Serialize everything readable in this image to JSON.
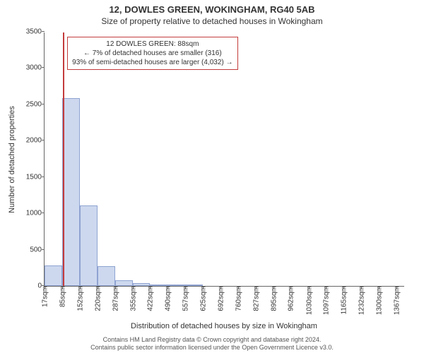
{
  "title": "12, DOWLES GREEN, WOKINGHAM, RG40 5AB",
  "subtitle": "Size of property relative to detached houses in Wokingham",
  "ylabel": "Number of detached properties",
  "xlabel": "Distribution of detached houses by size in Wokingham",
  "footer_line1": "Contains HM Land Registry data © Crown copyright and database right 2024.",
  "footer_line2": "Contains public sector information licensed under the Open Government Licence v3.0.",
  "chart": {
    "type": "histogram",
    "background_color": "#ffffff",
    "bar_fill": "#cdd8ef",
    "bar_border": "#8fa3d1",
    "axis_color": "#666666",
    "marker_color": "#c43b3b",
    "ylim": [
      0,
      3500
    ],
    "ytick_step": 500,
    "yticks": [
      0,
      500,
      1000,
      1500,
      2000,
      2500,
      3000,
      3500
    ],
    "xtick_label_fontsize": 10,
    "ytick_label_fontsize": 10,
    "title_fontsize": 13,
    "subtitle_fontsize": 12,
    "label_fontsize": 11,
    "x_min": 17,
    "x_max": 1400,
    "xticks": [
      17,
      85,
      152,
      220,
      287,
      355,
      422,
      490,
      557,
      625,
      692,
      760,
      827,
      895,
      962,
      1030,
      1097,
      1165,
      1232,
      1300,
      1367
    ],
    "xunits": "sqm",
    "bars": [
      {
        "x0": 17,
        "x1": 85,
        "count": 280
      },
      {
        "x0": 85,
        "x1": 152,
        "count": 2590
      },
      {
        "x0": 152,
        "x1": 220,
        "count": 1110
      },
      {
        "x0": 220,
        "x1": 287,
        "count": 270
      },
      {
        "x0": 287,
        "x1": 355,
        "count": 80
      },
      {
        "x0": 355,
        "x1": 422,
        "count": 40
      },
      {
        "x0": 422,
        "x1": 490,
        "count": 20
      },
      {
        "x0": 490,
        "x1": 557,
        "count": 10
      },
      {
        "x0": 557,
        "x1": 625,
        "count": 5
      }
    ],
    "marker": {
      "x": 88,
      "label_line1": "12 DOWLES GREEN: 88sqm",
      "label_line2": "← 7% of detached houses are smaller (316)",
      "label_line3": "93% of semi-detached houses are larger (4,032) →"
    }
  }
}
